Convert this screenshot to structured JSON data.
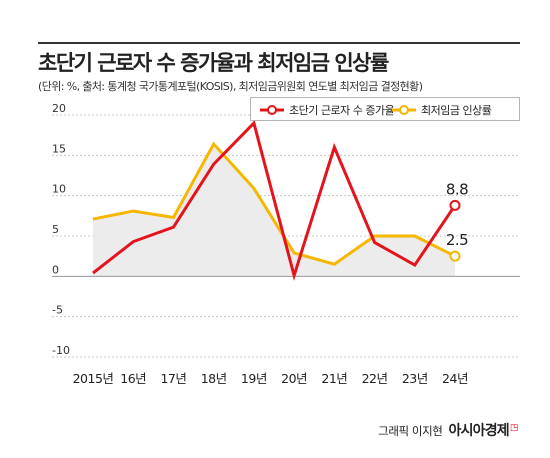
{
  "header": {
    "title": "초단기 근로자 수 증가율과 최저임금 인상률",
    "subtitle": "(단위: %, 출처: 통계청 국가통계포털(KOSIS), 최저임금위원회 연도별 최저임금 결정현황)"
  },
  "footer": {
    "credit": "그래픽 이지현",
    "brand": "아시아경제"
  },
  "colors": {
    "series_red": "#e4141e",
    "series_yellow": "#f5b700",
    "area_fill": "#ececec",
    "grid": "#c8c8c8"
  },
  "chart_data": {
    "type": "line",
    "categories": [
      "2015년",
      "16년",
      "17년",
      "18년",
      "19년",
      "20년",
      "21년",
      "22년",
      "23년",
      "24년"
    ],
    "series": [
      {
        "name": "초단기 근로자 수 증가율",
        "values": [
          0.4,
          4.3,
          6.1,
          13.9,
          19.0,
          0.1,
          16.0,
          4.2,
          1.4,
          8.8
        ]
      },
      {
        "name": "최저임금 인상률",
        "values": [
          7.1,
          8.1,
          7.3,
          16.4,
          10.9,
          2.9,
          1.5,
          5.0,
          5.0,
          2.5
        ]
      }
    ],
    "end_labels": [
      "8.8",
      "2.5"
    ],
    "ylim": [
      -10,
      20
    ],
    "yticks": [
      "-10",
      "-5",
      "0",
      "5",
      "10",
      "15",
      "20"
    ],
    "shaded_area_series": "최저임금 인상률",
    "grid": "dashed-horizontal",
    "legend_position": "top-right"
  }
}
